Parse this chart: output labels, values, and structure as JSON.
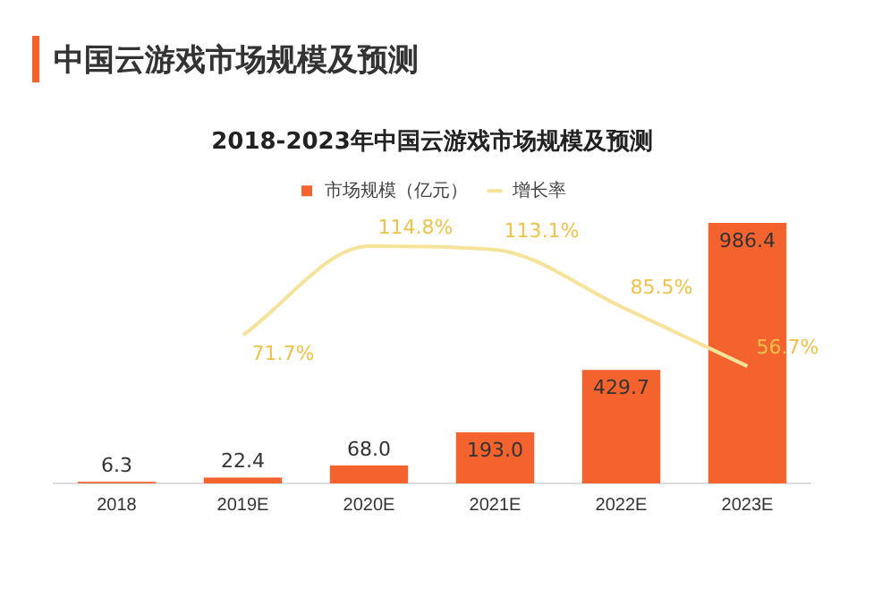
{
  "chart_data": {
    "type": "bar",
    "title": "2018-2023年中国云游戏市场规模及预测",
    "subtitle": "中国云游戏市场规模及预测",
    "categories": [
      "2018",
      "2019E",
      "2020E",
      "2021E",
      "2022E",
      "2023E"
    ],
    "series": [
      {
        "name": "市场规模（亿元）",
        "color": "#f4622e",
        "values": [
          6.3,
          22.4,
          68.0,
          193.0,
          429.7,
          986.4
        ],
        "value_labels": [
          "6.3",
          "22.4",
          "68.0",
          "193.0",
          "429.7",
          "986.4"
        ]
      },
      {
        "name": "增长率",
        "type": "line",
        "axis": "y2",
        "color": "#f6e39a",
        "values": [
          null,
          71.7,
          114.8,
          113.1,
          85.5,
          56.7
        ],
        "value_labels": [
          null,
          "71.7%",
          "114.8%",
          "113.1%",
          "85.5%",
          "56.7%"
        ]
      }
    ],
    "tick_labels": "x",
    "legend": "top",
    "grid": false,
    "marker": "none",
    "line_style": "solid"
  }
}
